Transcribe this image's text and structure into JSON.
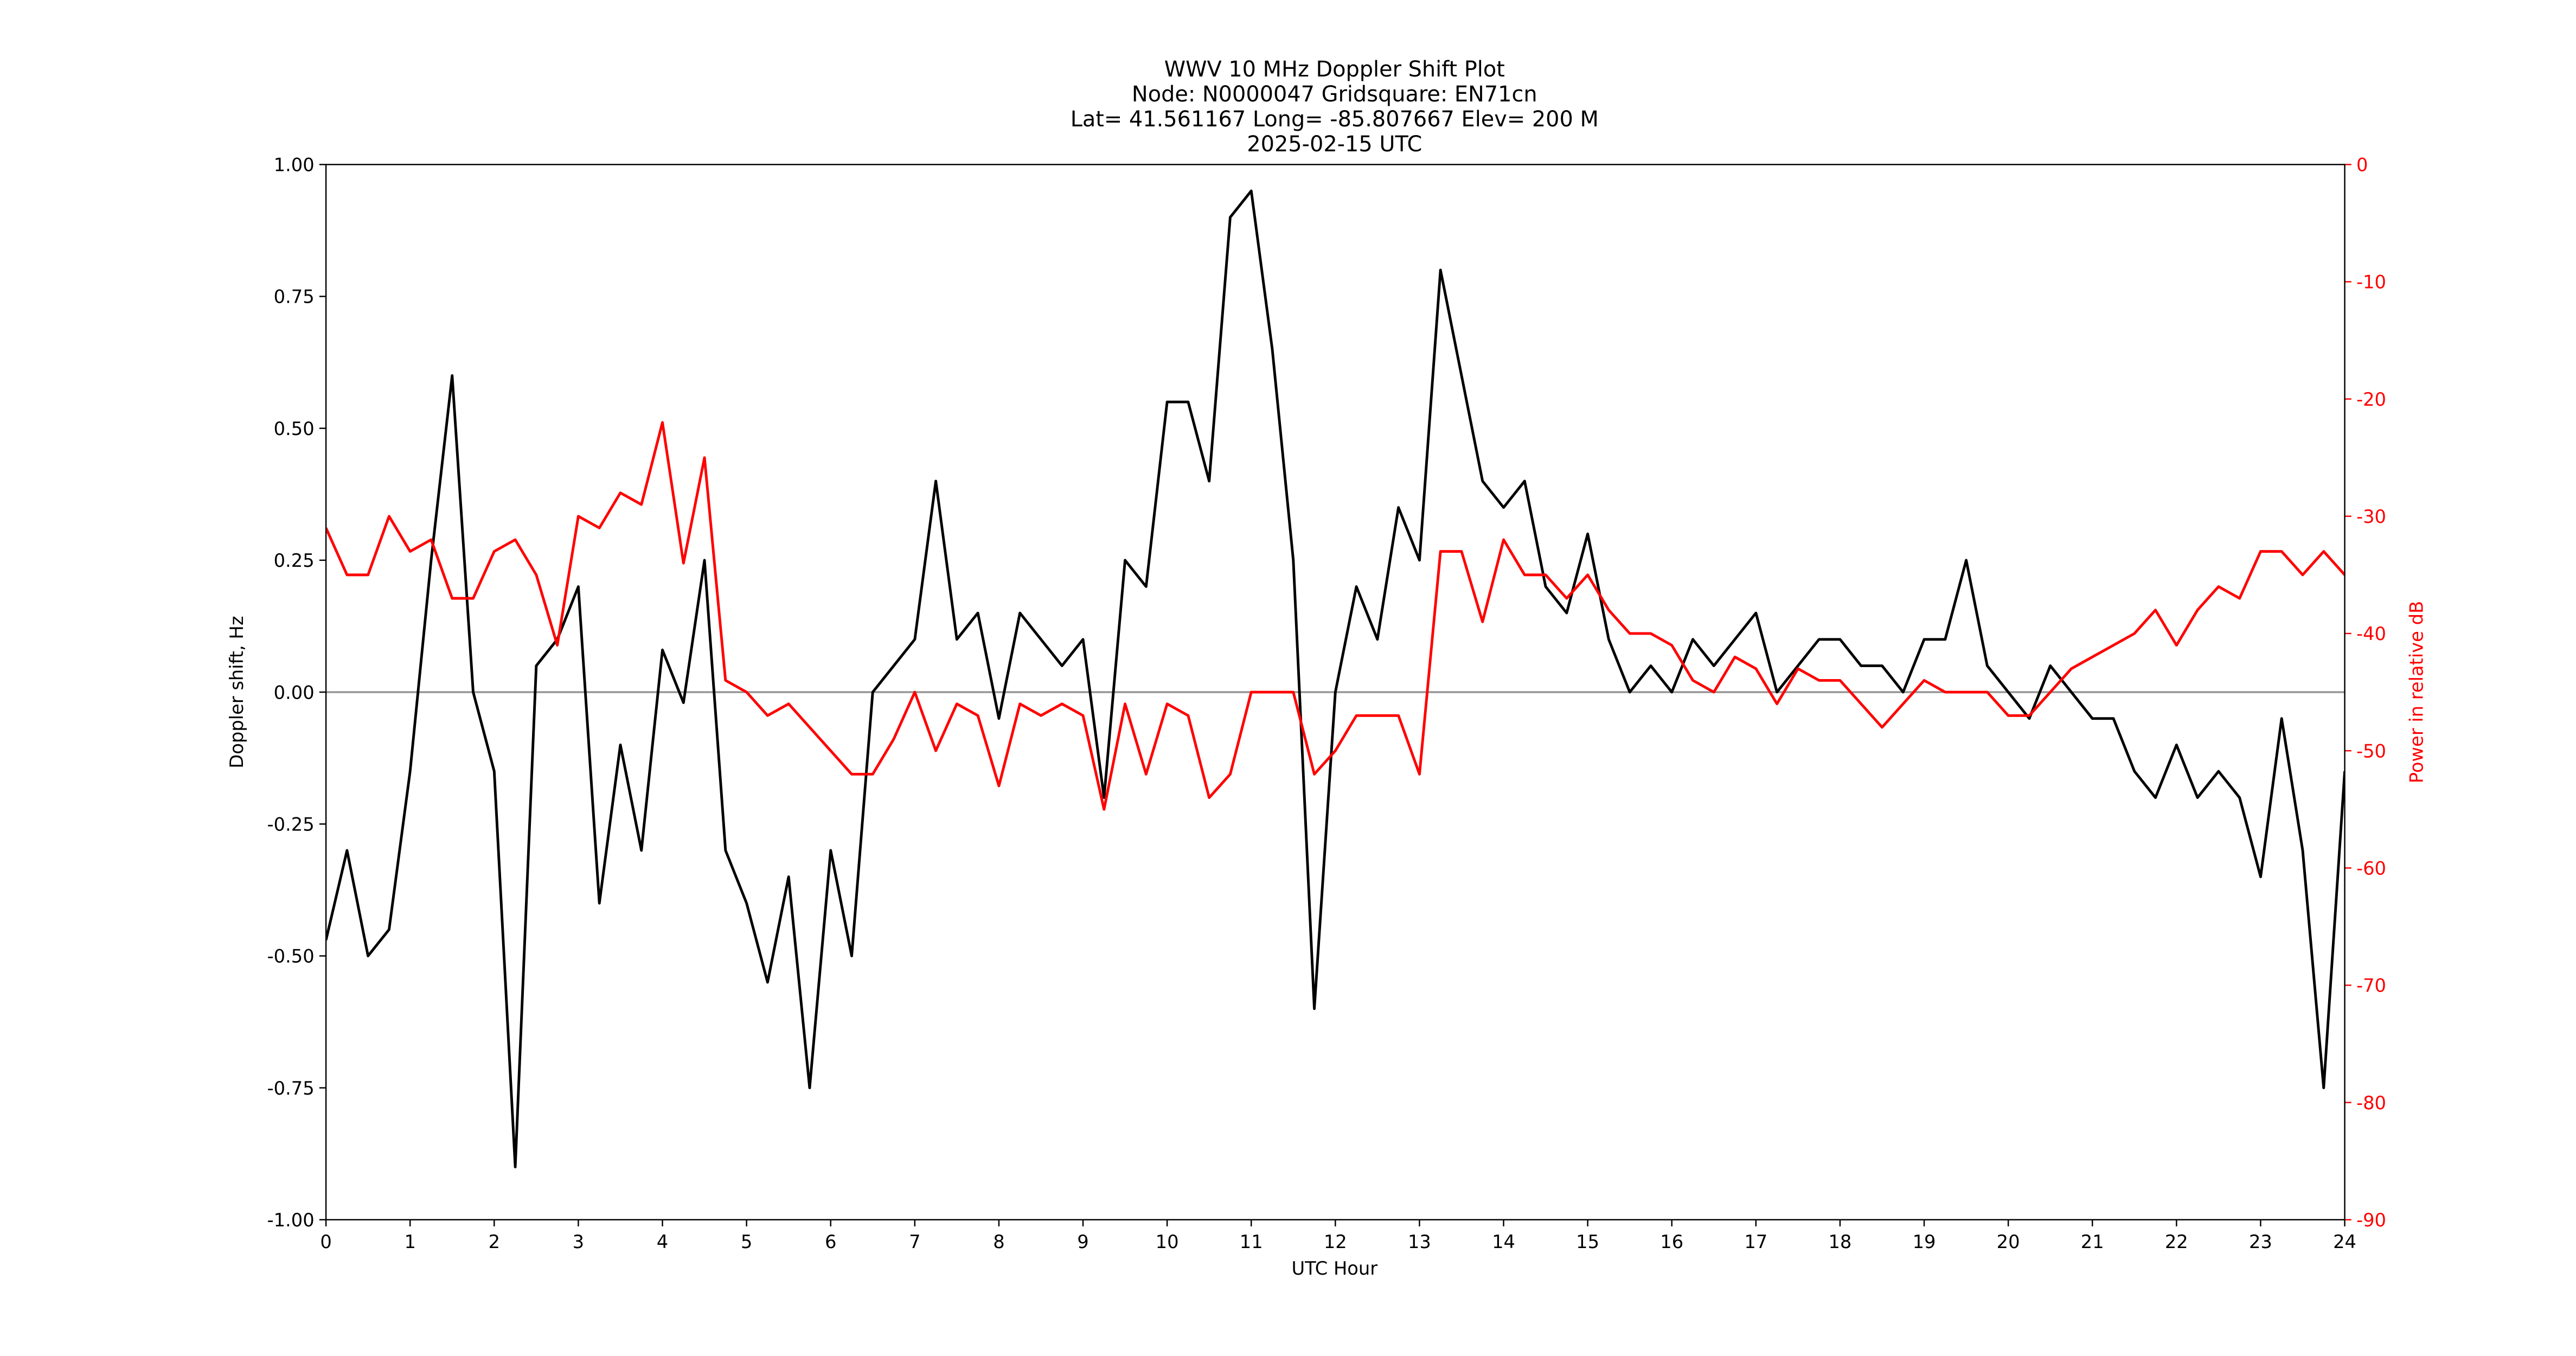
{
  "chart_data": {
    "type": "line",
    "title": [
      "WWV 10 MHz Doppler Shift Plot",
      "Node:  N0000047     Gridsquare:  EN71cn",
      "Lat= 41.561167    Long= -85.807667    Elev= 200 M",
      "2025-02-15  UTC"
    ],
    "x_label": "UTC Hour",
    "y_label": "Doppler shift, Hz",
    "y2_label": "Power in relative dB",
    "xlim": [
      0,
      24
    ],
    "xticks": [
      0,
      1,
      2,
      3,
      4,
      5,
      6,
      7,
      8,
      9,
      10,
      11,
      12,
      13,
      14,
      15,
      16,
      17,
      18,
      19,
      20,
      21,
      22,
      23,
      24
    ],
    "ylim": [
      -1,
      1
    ],
    "yticks": [
      {
        "value": -1,
        "label": "-1.00"
      },
      {
        "value": -0.75,
        "label": "-0.75"
      },
      {
        "value": -0.5,
        "label": "-0.50"
      },
      {
        "value": -0.25,
        "label": "-0.25"
      },
      {
        "value": 0,
        "label": "0.00"
      },
      {
        "value": 0.25,
        "label": "0.25"
      },
      {
        "value": 0.5,
        "label": "0.50"
      },
      {
        "value": 0.75,
        "label": "0.75"
      },
      {
        "value": 1,
        "label": "1.00"
      }
    ],
    "y2lim": [
      -90,
      0
    ],
    "y2ticks": [
      -90,
      -80,
      -70,
      -60,
      -50,
      -40,
      -30,
      -20,
      -10,
      0
    ],
    "y2_color": "#ff0000",
    "hline": 0,
    "hline_color": "#999999",
    "x": [
      0,
      0.25,
      0.5,
      0.75,
      1,
      1.25,
      1.5,
      1.75,
      2,
      2.25,
      2.5,
      2.75,
      3,
      3.25,
      3.5,
      3.75,
      4,
      4.25,
      4.5,
      4.75,
      5,
      5.25,
      5.5,
      5.75,
      6,
      6.25,
      6.5,
      6.75,
      7,
      7.25,
      7.5,
      7.75,
      8,
      8.25,
      8.5,
      8.75,
      9,
      9.25,
      9.5,
      9.75,
      10,
      10.25,
      10.5,
      10.75,
      11,
      11.25,
      11.5,
      11.75,
      12,
      12.25,
      12.5,
      12.75,
      13,
      13.25,
      13.5,
      13.75,
      14,
      14.25,
      14.5,
      14.75,
      15,
      15.25,
      15.5,
      15.75,
      16,
      16.25,
      16.5,
      16.75,
      17,
      17.25,
      17.5,
      17.75,
      18,
      18.25,
      18.5,
      18.75,
      19,
      19.25,
      19.5,
      19.75,
      20,
      20.25,
      20.5,
      20.75,
      21,
      21.25,
      21.5,
      21.75,
      22,
      22.25,
      22.5,
      22.75,
      23,
      23.25,
      23.5,
      23.75,
      24
    ],
    "series": [
      {
        "color": "#000000",
        "axis": "y",
        "values": [
          -0.47,
          -0.3,
          -0.5,
          -0.45,
          -0.15,
          0.25,
          0.6,
          0.0,
          -0.15,
          -0.9,
          0.05,
          0.1,
          0.2,
          -0.4,
          -0.1,
          -0.3,
          0.08,
          -0.02,
          0.25,
          -0.3,
          -0.4,
          -0.55,
          -0.35,
          -0.75,
          -0.3,
          -0.5,
          0.0,
          0.05,
          0.1,
          0.4,
          0.1,
          0.15,
          -0.05,
          0.15,
          0.1,
          0.05,
          0.1,
          -0.2,
          0.25,
          0.2,
          0.55,
          0.55,
          0.4,
          0.9,
          0.95,
          0.65,
          0.25,
          -0.6,
          0.0,
          0.2,
          0.1,
          0.35,
          0.25,
          0.8,
          0.6,
          0.4,
          0.35,
          0.4,
          0.2,
          0.15,
          0.3,
          0.1,
          0.0,
          0.05,
          0.0,
          0.1,
          0.05,
          0.1,
          0.15,
          0.0,
          0.05,
          0.1,
          0.1,
          0.05,
          0.05,
          0.0,
          0.1,
          0.1,
          0.25,
          0.05,
          0.0,
          -0.05,
          0.05,
          0.0,
          -0.05,
          -0.05,
          -0.15,
          -0.2,
          -0.1,
          -0.2,
          -0.15,
          -0.2,
          -0.35,
          -0.05,
          -0.3,
          -0.75,
          -0.15
        ]
      },
      {
        "color": "#ff0000",
        "axis": "y2",
        "values": [
          -31,
          -35,
          -35,
          -30,
          -33,
          -32,
          -37,
          -37,
          -33,
          -32,
          -35,
          -41,
          -30,
          -31,
          -28,
          -29,
          -22,
          -34,
          -25,
          -44,
          -45,
          -47,
          -46,
          -48,
          -50,
          -52,
          -52,
          -49,
          -45,
          -50,
          -46,
          -47,
          -53,
          -46,
          -47,
          -46,
          -47,
          -55,
          -46,
          -52,
          -46,
          -47,
          -54,
          -52,
          -45,
          -45,
          -45,
          -52,
          -50,
          -47,
          -47,
          -47,
          -52,
          -33,
          -33,
          -39,
          -32,
          -35,
          -35,
          -37,
          -35,
          -38,
          -40,
          -40,
          -41,
          -44,
          -45,
          -42,
          -43,
          -46,
          -43,
          -44,
          -44,
          -46,
          -48,
          -46,
          -44,
          -45,
          -45,
          -45,
          -47,
          -47,
          -45,
          -43,
          -42,
          -41,
          -40,
          -38,
          -41,
          -38,
          -36,
          -37,
          -33,
          -33,
          -35,
          -33,
          -35
        ]
      }
    ]
  }
}
